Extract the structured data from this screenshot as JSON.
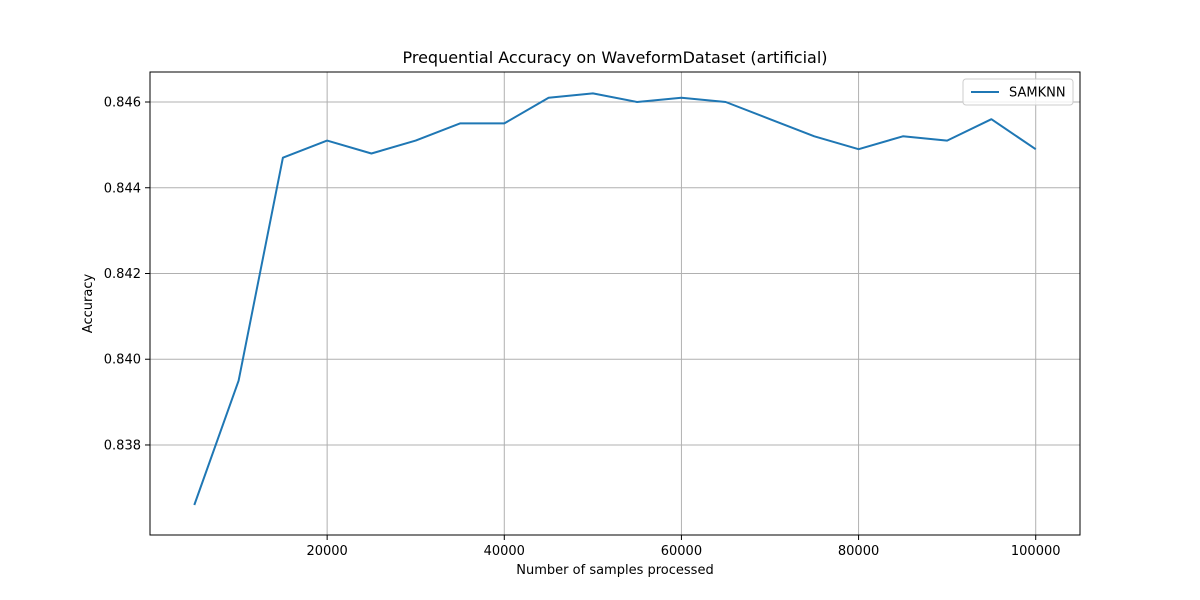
{
  "chart_data": {
    "type": "line",
    "title": "Prequential Accuracy on WaveformDataset (artificial)",
    "xlabel": "Number of samples processed",
    "ylabel": "Accuracy",
    "xlim": [
      0,
      105000
    ],
    "ylim": [
      0.8359,
      0.8467
    ],
    "xticks": [
      20000,
      40000,
      60000,
      80000,
      100000
    ],
    "xtick_labels": [
      "20000",
      "40000",
      "60000",
      "80000",
      "100000"
    ],
    "yticks": [
      0.838,
      0.84,
      0.842,
      0.844,
      0.846
    ],
    "ytick_labels": [
      "0.838",
      "0.840",
      "0.842",
      "0.844",
      "0.846"
    ],
    "grid": true,
    "legend_placement": "top-right",
    "series": [
      {
        "name": "SAMKNN",
        "color": "#1f77b4",
        "x": [
          5000,
          10000,
          15000,
          20000,
          25000,
          30000,
          35000,
          40000,
          45000,
          50000,
          55000,
          60000,
          65000,
          70000,
          75000,
          80000,
          85000,
          90000,
          95000,
          100000
        ],
        "y": [
          0.8366,
          0.8395,
          0.8447,
          0.8451,
          0.8448,
          0.8451,
          0.8455,
          0.8455,
          0.8461,
          0.8462,
          0.846,
          0.8461,
          0.846,
          0.8456,
          0.8452,
          0.8449,
          0.8452,
          0.8451,
          0.8456,
          0.8449
        ]
      }
    ]
  }
}
